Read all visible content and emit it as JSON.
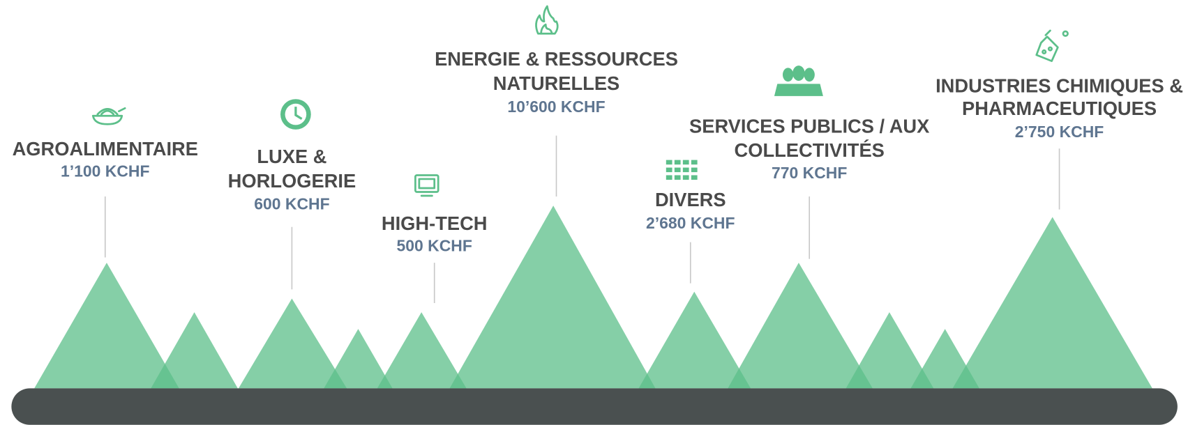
{
  "sectors": [
    {
      "title_lines": [
        "AGROALIMENTAIRE"
      ],
      "value": "1’100 KCHF"
    },
    {
      "title_lines": [
        "LUXE &",
        "HORLOGERIE"
      ],
      "value": "600 KCHF"
    },
    {
      "title_lines": [
        "HIGH-TECH"
      ],
      "value": "500 KCHF"
    },
    {
      "title_lines": [
        "ENERGIE & RESSOURCES",
        "NATURELLES"
      ],
      "value": "10’600 KCHF"
    },
    {
      "title_lines": [
        "DIVERS"
      ],
      "value": "2’680 KCHF"
    },
    {
      "title_lines": [
        "SERVICES PUBLICS / AUX",
        "COLLECTIVITÉS"
      ],
      "value": "770 KCHF"
    },
    {
      "title_lines": [
        "INDUSTRIES CHIMIQUES &",
        "PHARMACEUTIQUES"
      ],
      "value": "2’750 KCHF"
    }
  ]
}
